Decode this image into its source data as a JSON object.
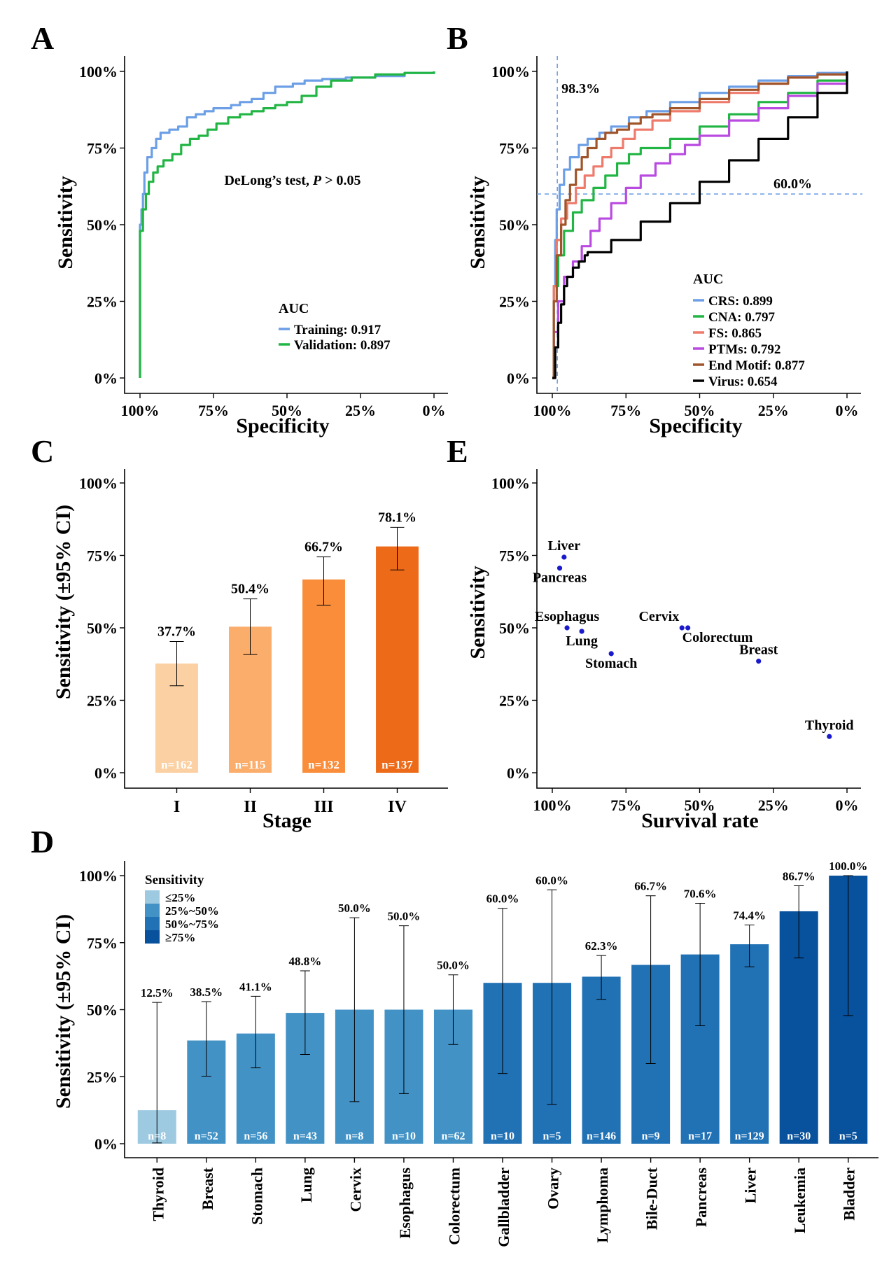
{
  "figure": {
    "panel_labels": [
      "A",
      "B",
      "C",
      "E",
      "D"
    ]
  },
  "chart_data": [
    {
      "panel": "A",
      "type": "line",
      "title": "",
      "xlabel": "Specificity",
      "ylabel": "Sensitivity",
      "xticks": [
        "100%",
        "75%",
        "50%",
        "25%",
        "0%"
      ],
      "yticks": [
        "0%",
        "25%",
        "50%",
        "75%",
        "100%"
      ],
      "xlim": [
        1.0,
        0.0
      ],
      "ylim": [
        0.0,
        1.0
      ],
      "annotation": {
        "text_before": "DeLong’s test, ",
        "italic": "P",
        "text_after": " > 0.05"
      },
      "legend_title": "AUC",
      "legend_position": "bottom-right",
      "series": [
        {
          "name": "Training: 0.917",
          "color": "#6c9fe5",
          "points": [
            [
              1.0,
              0.0
            ],
            [
              1.0,
              0.5
            ],
            [
              0.995,
              0.55
            ],
            [
              0.99,
              0.6
            ],
            [
              0.985,
              0.67
            ],
            [
              0.975,
              0.72
            ],
            [
              0.96,
              0.75
            ],
            [
              0.945,
              0.78
            ],
            [
              0.93,
              0.8
            ],
            [
              0.9,
              0.81
            ],
            [
              0.87,
              0.82
            ],
            [
              0.84,
              0.85
            ],
            [
              0.81,
              0.86
            ],
            [
              0.78,
              0.87
            ],
            [
              0.75,
              0.88
            ],
            [
              0.72,
              0.88
            ],
            [
              0.69,
              0.89
            ],
            [
              0.66,
              0.9
            ],
            [
              0.62,
              0.91
            ],
            [
              0.58,
              0.93
            ],
            [
              0.54,
              0.95
            ],
            [
              0.48,
              0.96
            ],
            [
              0.44,
              0.97
            ],
            [
              0.38,
              0.975
            ],
            [
              0.3,
              0.98
            ],
            [
              0.2,
              0.985
            ],
            [
              0.1,
              0.995
            ],
            [
              0.0,
              1.0
            ]
          ]
        },
        {
          "name": "Validation: 0.897",
          "color": "#21b544",
          "points": [
            [
              1.0,
              0.0
            ],
            [
              1.0,
              0.48
            ],
            [
              0.99,
              0.55
            ],
            [
              0.98,
              0.6
            ],
            [
              0.97,
              0.64
            ],
            [
              0.955,
              0.67
            ],
            [
              0.94,
              0.69
            ],
            [
              0.92,
              0.71
            ],
            [
              0.89,
              0.73
            ],
            [
              0.86,
              0.76
            ],
            [
              0.83,
              0.78
            ],
            [
              0.8,
              0.79
            ],
            [
              0.77,
              0.81
            ],
            [
              0.74,
              0.83
            ],
            [
              0.7,
              0.85
            ],
            [
              0.66,
              0.86
            ],
            [
              0.62,
              0.87
            ],
            [
              0.58,
              0.88
            ],
            [
              0.54,
              0.89
            ],
            [
              0.5,
              0.9
            ],
            [
              0.45,
              0.92
            ],
            [
              0.4,
              0.95
            ],
            [
              0.35,
              0.97
            ],
            [
              0.28,
              0.98
            ],
            [
              0.2,
              0.99
            ],
            [
              0.1,
              0.995
            ],
            [
              0.0,
              1.0
            ]
          ]
        }
      ]
    },
    {
      "panel": "B",
      "type": "line",
      "title": "",
      "xlabel": "Specificity",
      "ylabel": "Sensitivity",
      "xticks": [
        "100%",
        "75%",
        "50%",
        "25%",
        "0%"
      ],
      "yticks": [
        "0%",
        "25%",
        "50%",
        "75%",
        "100%"
      ],
      "xlim": [
        1.0,
        0.0
      ],
      "ylim": [
        0.0,
        1.0
      ],
      "reference_lines": {
        "specificity": 0.983,
        "sensitivity": 0.6,
        "specificity_label": "98.3%",
        "sensitivity_label": "60.0%",
        "color": "#6c9fe5"
      },
      "legend_title": "AUC",
      "legend_position": "bottom-right",
      "series": [
        {
          "name": "CRS: 0.899",
          "color": "#6c9fe5",
          "points": [
            [
              1.0,
              0.0
            ],
            [
              0.995,
              0.3
            ],
            [
              0.99,
              0.45
            ],
            [
              0.985,
              0.55
            ],
            [
              0.975,
              0.63
            ],
            [
              0.96,
              0.68
            ],
            [
              0.94,
              0.72
            ],
            [
              0.91,
              0.76
            ],
            [
              0.88,
              0.78
            ],
            [
              0.84,
              0.8
            ],
            [
              0.8,
              0.82
            ],
            [
              0.74,
              0.85
            ],
            [
              0.68,
              0.87
            ],
            [
              0.6,
              0.9
            ],
            [
              0.5,
              0.93
            ],
            [
              0.4,
              0.95
            ],
            [
              0.3,
              0.97
            ],
            [
              0.2,
              0.985
            ],
            [
              0.1,
              0.995
            ],
            [
              0.0,
              1.0
            ]
          ]
        },
        {
          "name": "CNA: 0.797",
          "color": "#21b544",
          "points": [
            [
              1.0,
              0.0
            ],
            [
              0.995,
              0.3
            ],
            [
              0.98,
              0.4
            ],
            [
              0.96,
              0.48
            ],
            [
              0.93,
              0.54
            ],
            [
              0.9,
              0.58
            ],
            [
              0.86,
              0.62
            ],
            [
              0.82,
              0.66
            ],
            [
              0.78,
              0.7
            ],
            [
              0.74,
              0.73
            ],
            [
              0.7,
              0.75
            ],
            [
              0.6,
              0.78
            ],
            [
              0.5,
              0.82
            ],
            [
              0.4,
              0.86
            ],
            [
              0.3,
              0.9
            ],
            [
              0.2,
              0.93
            ],
            [
              0.1,
              0.97
            ],
            [
              0.0,
              1.0
            ]
          ]
        },
        {
          "name": "FS: 0.865",
          "color": "#ee7a6c",
          "points": [
            [
              1.0,
              0.0
            ],
            [
              0.995,
              0.3
            ],
            [
              0.985,
              0.45
            ],
            [
              0.97,
              0.52
            ],
            [
              0.95,
              0.57
            ],
            [
              0.92,
              0.62
            ],
            [
              0.89,
              0.66
            ],
            [
              0.86,
              0.69
            ],
            [
              0.83,
              0.72
            ],
            [
              0.8,
              0.75
            ],
            [
              0.76,
              0.78
            ],
            [
              0.72,
              0.81
            ],
            [
              0.66,
              0.84
            ],
            [
              0.6,
              0.87
            ],
            [
              0.5,
              0.9
            ],
            [
              0.4,
              0.93
            ],
            [
              0.3,
              0.96
            ],
            [
              0.2,
              0.98
            ],
            [
              0.1,
              0.99
            ],
            [
              0.0,
              1.0
            ]
          ]
        },
        {
          "name": "PTMs: 0.792",
          "color": "#b94be0",
          "points": [
            [
              1.0,
              0.0
            ],
            [
              0.995,
              0.15
            ],
            [
              0.98,
              0.25
            ],
            [
              0.96,
              0.33
            ],
            [
              0.93,
              0.38
            ],
            [
              0.9,
              0.43
            ],
            [
              0.87,
              0.48
            ],
            [
              0.84,
              0.52
            ],
            [
              0.8,
              0.57
            ],
            [
              0.75,
              0.62
            ],
            [
              0.7,
              0.66
            ],
            [
              0.65,
              0.7
            ],
            [
              0.6,
              0.73
            ],
            [
              0.55,
              0.76
            ],
            [
              0.5,
              0.79
            ],
            [
              0.4,
              0.84
            ],
            [
              0.3,
              0.88
            ],
            [
              0.2,
              0.92
            ],
            [
              0.1,
              0.96
            ],
            [
              0.0,
              1.0
            ]
          ]
        },
        {
          "name": "End Motif: 0.877",
          "color": "#a0542a",
          "points": [
            [
              1.0,
              0.0
            ],
            [
              0.995,
              0.25
            ],
            [
              0.985,
              0.4
            ],
            [
              0.97,
              0.5
            ],
            [
              0.955,
              0.58
            ],
            [
              0.94,
              0.63
            ],
            [
              0.92,
              0.68
            ],
            [
              0.9,
              0.72
            ],
            [
              0.88,
              0.75
            ],
            [
              0.85,
              0.78
            ],
            [
              0.82,
              0.8
            ],
            [
              0.78,
              0.81
            ],
            [
              0.74,
              0.83
            ],
            [
              0.7,
              0.85
            ],
            [
              0.66,
              0.86
            ],
            [
              0.6,
              0.88
            ],
            [
              0.5,
              0.91
            ],
            [
              0.4,
              0.94
            ],
            [
              0.3,
              0.96
            ],
            [
              0.2,
              0.98
            ],
            [
              0.1,
              0.99
            ],
            [
              0.0,
              1.0
            ]
          ]
        },
        {
          "name": "Virus: 0.654",
          "color": "#000000",
          "points": [
            [
              1.0,
              0.0
            ],
            [
              0.99,
              0.1
            ],
            [
              0.98,
              0.18
            ],
            [
              0.97,
              0.24
            ],
            [
              0.96,
              0.3
            ],
            [
              0.95,
              0.33
            ],
            [
              0.93,
              0.36
            ],
            [
              0.91,
              0.38
            ],
            [
              0.89,
              0.4
            ],
            [
              0.88,
              0.41
            ],
            [
              0.8,
              0.45
            ],
            [
              0.7,
              0.51
            ],
            [
              0.6,
              0.57
            ],
            [
              0.5,
              0.64
            ],
            [
              0.4,
              0.71
            ],
            [
              0.3,
              0.78
            ],
            [
              0.2,
              0.85
            ],
            [
              0.1,
              0.93
            ],
            [
              0.0,
              1.0
            ]
          ]
        }
      ]
    },
    {
      "panel": "C",
      "type": "bar",
      "title": "",
      "xlabel": "Stage",
      "ylabel": "Sensitivity (±95% CI)",
      "yticks": [
        "0%",
        "25%",
        "50%",
        "75%",
        "100%"
      ],
      "ylim": [
        0,
        100
      ],
      "categories": [
        "I",
        "II",
        "III",
        "IV"
      ],
      "values": [
        37.7,
        50.4,
        66.7,
        78.1
      ],
      "value_labels": [
        "37.7%",
        "50.4%",
        "66.7%",
        "78.1%"
      ],
      "ci_low": [
        30.0,
        40.8,
        57.8,
        70.0
      ],
      "ci_high": [
        45.3,
        60.0,
        74.5,
        84.7
      ],
      "n_labels": [
        "n=162",
        "n=115",
        "n=132",
        "n=137"
      ],
      "colors": [
        "#fbd0a2",
        "#fbad6b",
        "#f98d3a",
        "#ec6a18"
      ]
    },
    {
      "panel": "E",
      "type": "scatter",
      "title": "",
      "xlabel": "Survival rate",
      "ylabel": "Sensitivity",
      "xticks": [
        "100%",
        "75%",
        "50%",
        "25%",
        "0%"
      ],
      "yticks": [
        "0%",
        "25%",
        "50%",
        "75%",
        "100%"
      ],
      "xlim": [
        1.0,
        0.0
      ],
      "ylim": [
        0.0,
        1.0
      ],
      "point_color": "#1a1acc",
      "points": [
        {
          "label": "Liver",
          "x": 0.96,
          "y": 0.744,
          "anchor": "above"
        },
        {
          "label": "Pancreas",
          "x": 0.975,
          "y": 0.706,
          "anchor": "below"
        },
        {
          "label": "Esophagus",
          "x": 0.95,
          "y": 0.5,
          "anchor": "above"
        },
        {
          "label": "Lung",
          "x": 0.9,
          "y": 0.488,
          "anchor": "below"
        },
        {
          "label": "Stomach",
          "x": 0.8,
          "y": 0.411,
          "anchor": "below"
        },
        {
          "label": "Cervix",
          "x": 0.56,
          "y": 0.5,
          "anchor": "above-left"
        },
        {
          "label": "Colorectum",
          "x": 0.54,
          "y": 0.5,
          "anchor": "below-right"
        },
        {
          "label": "Breast",
          "x": 0.3,
          "y": 0.385,
          "anchor": "above"
        },
        {
          "label": "Thyroid",
          "x": 0.06,
          "y": 0.125,
          "anchor": "above"
        }
      ]
    },
    {
      "panel": "D",
      "type": "bar",
      "title": "",
      "xlabel": "",
      "ylabel": "Sensitivity (±95% CI)",
      "yticks": [
        "0%",
        "25%",
        "50%",
        "75%",
        "100%"
      ],
      "ylim": [
        0,
        100
      ],
      "categories": [
        "Thyroid",
        "Breast",
        "Stomach",
        "Lung",
        "Cervix",
        "Esophagus",
        "Colorectum",
        "Gallbladder",
        "Ovary",
        "Lymphoma",
        "Bile-Duct",
        "Pancreas",
        "Liver",
        "Leukemia",
        "Bladder"
      ],
      "values": [
        12.5,
        38.5,
        41.1,
        48.8,
        50.0,
        50.0,
        50.0,
        60.0,
        60.0,
        62.3,
        66.7,
        70.6,
        74.4,
        86.7,
        100.0
      ],
      "value_labels": [
        "12.5%",
        "38.5%",
        "41.1%",
        "48.8%",
        "50.0%",
        "50.0%",
        "50.0%",
        "60.0%",
        "60.0%",
        "62.3%",
        "66.7%",
        "70.6%",
        "74.4%",
        "86.7%",
        "100.0%"
      ],
      "ci_low": [
        0.3,
        25.2,
        28.3,
        33.3,
        15.7,
        18.7,
        37.0,
        26.2,
        14.7,
        53.9,
        29.9,
        44.0,
        66.0,
        69.3,
        47.8
      ],
      "ci_high": [
        52.7,
        53.0,
        55.0,
        64.5,
        84.3,
        81.3,
        63.0,
        87.8,
        94.7,
        70.2,
        92.5,
        89.7,
        81.6,
        96.2,
        100.0
      ],
      "n_labels": [
        "n=8",
        "n=52",
        "n=56",
        "n=43",
        "n=8",
        "n=10",
        "n=62",
        "n=10",
        "n=5",
        "n=146",
        "n=9",
        "n=17",
        "n=129",
        "n=30",
        "n=5"
      ],
      "legend_title": "Sensitivity",
      "legend_position": "top-left",
      "legend": [
        {
          "label": "≤25%",
          "color": "#9ecae1"
        },
        {
          "label": "25%~50%",
          "color": "#4292c6"
        },
        {
          "label": "50%~75%",
          "color": "#2171b5"
        },
        {
          "label": "≥75%",
          "color": "#08519c"
        }
      ]
    }
  ]
}
